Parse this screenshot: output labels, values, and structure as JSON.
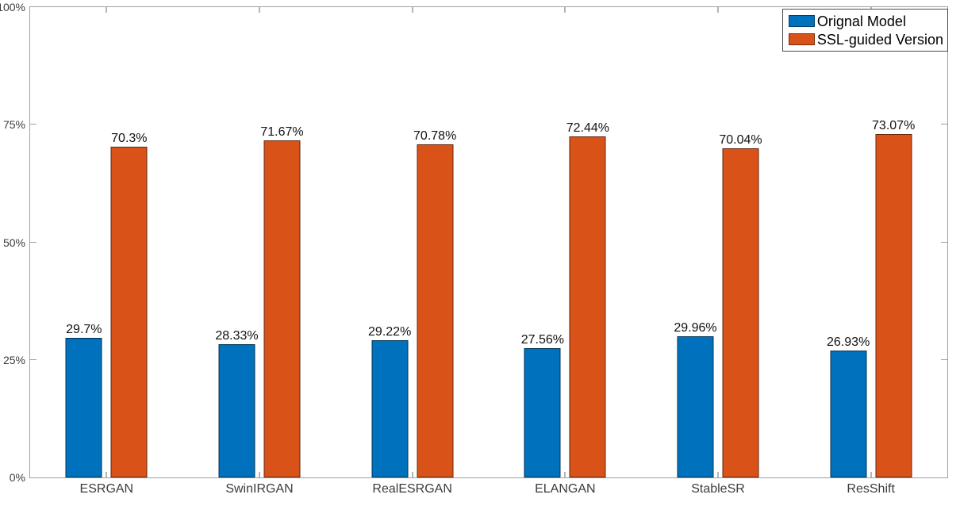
{
  "chart_data": {
    "type": "bar",
    "title": "",
    "xlabel": "",
    "ylabel": "",
    "categories": [
      "ESRGAN",
      "SwinIRGAN",
      "RealESRGAN",
      "ELANGAN",
      "StableSR",
      "ResShift"
    ],
    "series": [
      {
        "name": "Orignal Model",
        "color": "#0072BD",
        "values": [
          29.7,
          28.33,
          29.22,
          27.56,
          29.96,
          26.93
        ],
        "value_labels": [
          "29.7%",
          "28.33%",
          "29.22%",
          "27.56%",
          "29.96%",
          "26.93%"
        ]
      },
      {
        "name": "SSL-guided Version",
        "color": "#D95319",
        "values": [
          70.3,
          71.67,
          70.78,
          72.44,
          70.04,
          73.07
        ],
        "value_labels": [
          "70.3%",
          "71.67%",
          "70.78%",
          "72.44%",
          "70.04%",
          "73.07%"
        ]
      }
    ],
    "ylim": [
      0,
      100
    ],
    "yticks": [
      {
        "value": 0,
        "label": "0%"
      },
      {
        "value": 25,
        "label": "25%"
      },
      {
        "value": 50,
        "label": "50%"
      },
      {
        "value": 75,
        "label": "75%"
      },
      {
        "value": 100,
        "label": "100%"
      }
    ],
    "grid": false,
    "legend_position": "top-right"
  }
}
